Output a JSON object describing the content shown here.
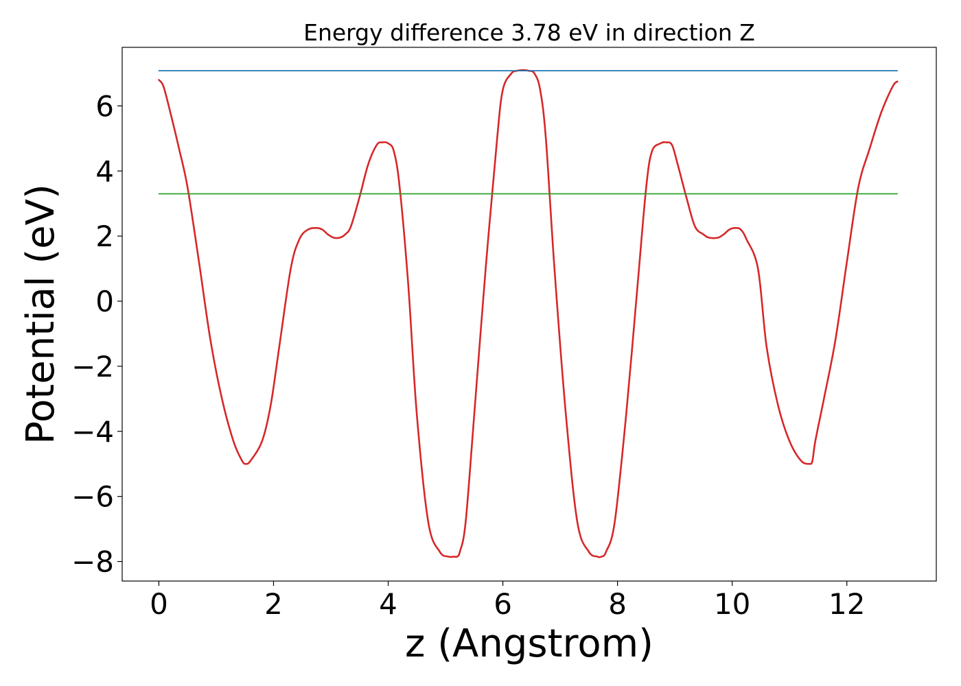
{
  "chart_data": {
    "type": "line",
    "title": "Energy difference 3.78 eV in direction Z",
    "xlabel": "z (Angstrom)",
    "ylabel": "Potential (eV)",
    "xlim": [
      -0.64,
      13.56
    ],
    "ylim": [
      -8.6,
      7.8
    ],
    "xticks": [
      0,
      2,
      4,
      6,
      8,
      10,
      12
    ],
    "yticks": [
      -8,
      -6,
      -4,
      -2,
      0,
      2,
      4,
      6
    ],
    "grid": false,
    "legend": "none",
    "series": [
      {
        "color": "#d62728",
        "x": [
          0.0,
          0.08,
          0.2,
          0.35,
          0.5,
          0.7,
          0.9,
          1.1,
          1.3,
          1.45,
          1.52,
          1.6,
          1.8,
          1.95,
          2.1,
          2.3,
          2.45,
          2.6,
          2.75,
          2.85,
          2.95,
          3.05,
          3.15,
          3.25,
          3.35,
          3.5,
          3.65,
          3.8,
          3.9,
          4.0,
          4.1,
          4.2,
          4.35,
          4.5,
          4.7,
          4.9,
          5.05,
          5.15,
          5.2,
          5.25,
          5.35,
          5.5,
          5.7,
          5.9,
          6.0,
          6.15,
          6.25,
          6.35,
          6.45,
          6.55,
          6.65,
          6.75,
          6.9,
          7.1,
          7.3,
          7.5,
          7.65,
          7.72,
          7.8,
          7.95,
          8.15,
          8.35,
          8.5,
          8.6,
          8.75,
          8.85,
          8.95,
          9.05,
          9.2,
          9.35,
          9.5,
          9.6,
          9.75,
          9.85,
          9.95,
          10.05,
          10.15,
          10.25,
          10.45,
          10.6,
          10.8,
          11.0,
          11.2,
          11.35,
          11.4,
          11.45,
          11.6,
          11.8,
          12.0,
          12.2,
          12.4,
          12.6,
          12.8,
          12.88
        ],
        "y": [
          6.8,
          6.6,
          5.8,
          4.7,
          3.5,
          1.2,
          -1.2,
          -3.0,
          -4.3,
          -4.9,
          -5.0,
          -4.9,
          -4.3,
          -3.2,
          -1.4,
          1.0,
          1.9,
          2.2,
          2.25,
          2.2,
          2.05,
          1.95,
          1.95,
          2.05,
          2.3,
          3.2,
          4.2,
          4.8,
          4.88,
          4.85,
          4.6,
          3.5,
          0.5,
          -3.5,
          -6.8,
          -7.7,
          -7.85,
          -7.85,
          -7.85,
          -7.7,
          -6.8,
          -3.5,
          1.0,
          5.0,
          6.5,
          7.0,
          7.08,
          7.1,
          7.08,
          7.0,
          6.5,
          5.0,
          1.0,
          -3.5,
          -6.8,
          -7.7,
          -7.85,
          -7.85,
          -7.7,
          -6.8,
          -3.5,
          0.5,
          3.5,
          4.6,
          4.85,
          4.88,
          4.8,
          4.2,
          3.2,
          2.3,
          2.05,
          1.95,
          1.95,
          2.05,
          2.2,
          2.25,
          2.2,
          1.9,
          1.0,
          -1.4,
          -3.2,
          -4.3,
          -4.9,
          -5.0,
          -4.9,
          -4.3,
          -3.0,
          -1.2,
          1.2,
          3.5,
          4.7,
          5.8,
          6.6,
          6.75
        ]
      },
      {
        "color": "#1f77b4",
        "x": [
          0.0,
          12.88
        ],
        "y": [
          7.08,
          7.08
        ]
      },
      {
        "color": "#2ca02c",
        "x": [
          0.0,
          12.88
        ],
        "y": [
          3.3,
          3.3
        ]
      }
    ]
  }
}
